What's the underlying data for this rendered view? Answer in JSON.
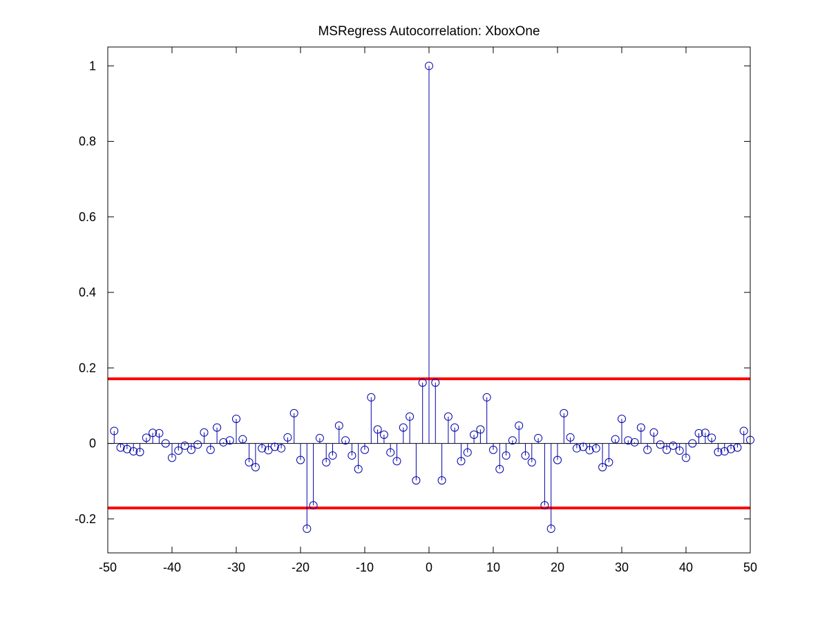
{
  "chart_data": {
    "type": "stem",
    "title": "MSRegress Autocorrelation: XboxOne",
    "xlabel": "",
    "ylabel": "",
    "xlim": [
      -50,
      50
    ],
    "ylim": [
      -0.29,
      1.05
    ],
    "xticks": [
      -50,
      -40,
      -30,
      -20,
      -10,
      0,
      10,
      20,
      30,
      40,
      50
    ],
    "yticks": [
      -0.2,
      0,
      0.2,
      0.4,
      0.6,
      0.8,
      1
    ],
    "xtick_labels": [
      "-50",
      "-40",
      "-30",
      "-20",
      "-10",
      "0",
      "10",
      "20",
      "30",
      "40",
      "50"
    ],
    "ytick_labels": [
      "-0.2",
      "0",
      "0.2",
      "0.4",
      "0.6",
      "0.8",
      "1"
    ],
    "grid": false,
    "stem_color": "#0000aa",
    "bound_color": "#ff0000",
    "bounds": [
      0.171,
      -0.171
    ],
    "lags": [
      -49,
      -48,
      -47,
      -46,
      -45,
      -44,
      -43,
      -42,
      -41,
      -40,
      -39,
      -38,
      -37,
      -36,
      -35,
      -34,
      -33,
      -32,
      -31,
      -30,
      -29,
      -28,
      -27,
      -26,
      -25,
      -24,
      -23,
      -22,
      -21,
      -20,
      -19,
      -18,
      -17,
      -16,
      -15,
      -14,
      -13,
      -12,
      -11,
      -10,
      -9,
      -8,
      -7,
      -6,
      -5,
      -4,
      -3,
      -2,
      -1,
      0,
      1,
      2,
      3,
      4,
      5,
      6,
      7,
      8,
      9,
      10,
      11,
      12,
      13,
      14,
      15,
      16,
      17,
      18,
      19,
      20,
      21,
      22,
      23,
      24,
      25,
      26,
      27,
      28,
      29,
      30,
      31,
      32,
      33,
      34,
      35,
      36,
      37,
      38,
      39,
      40,
      41,
      42,
      43,
      44,
      45,
      46,
      47,
      48,
      49,
      50
    ],
    "values": [
      0.033,
      -0.011,
      -0.015,
      -0.021,
      -0.023,
      0.015,
      0.028,
      0.027,
      0.0,
      -0.038,
      -0.019,
      -0.006,
      -0.017,
      -0.003,
      0.029,
      -0.017,
      0.042,
      0.003,
      0.008,
      0.065,
      0.011,
      -0.05,
      -0.063,
      -0.013,
      -0.018,
      -0.009,
      -0.013,
      0.016,
      0.08,
      -0.044,
      -0.226,
      -0.164,
      0.014,
      -0.05,
      -0.032,
      0.047,
      0.008,
      -0.032,
      -0.068,
      -0.017,
      0.122,
      0.037,
      0.023,
      -0.024,
      -0.047,
      0.042,
      0.071,
      -0.098,
      0.161,
      1.0,
      0.161,
      -0.098,
      0.071,
      0.042,
      -0.047,
      -0.024,
      0.023,
      0.037,
      0.122,
      -0.017,
      -0.068,
      -0.032,
      0.008,
      0.047,
      -0.032,
      -0.05,
      0.014,
      -0.164,
      -0.226,
      -0.044,
      0.08,
      0.016,
      -0.013,
      -0.009,
      -0.018,
      -0.013,
      -0.063,
      -0.05,
      0.011,
      0.065,
      0.008,
      0.003,
      0.042,
      -0.017,
      0.029,
      -0.003,
      -0.017,
      -0.006,
      -0.019,
      -0.038,
      0.0,
      0.027,
      0.028,
      0.015,
      -0.023,
      -0.021,
      -0.015,
      -0.011,
      0.033,
      0.009
    ]
  }
}
